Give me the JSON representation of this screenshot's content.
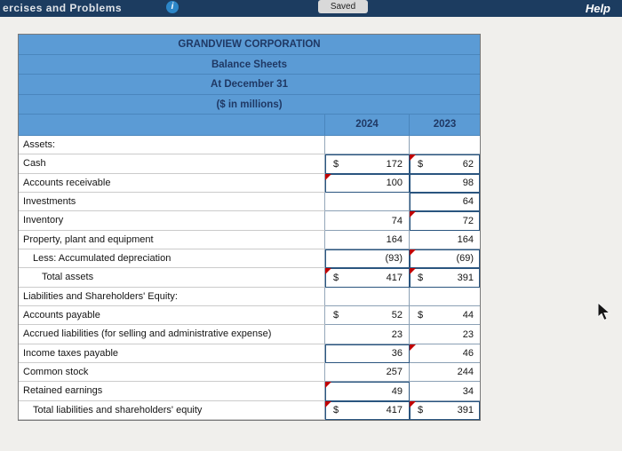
{
  "topbar": {
    "left_text": "ercises and Problems",
    "info_glyph": "i",
    "saved_label": "Saved",
    "help_label": "Help"
  },
  "colors": {
    "topbar_bg": "#1c3c60",
    "header_blue": "#5b9bd5",
    "header_text": "#1f3864",
    "input_box_border": "#2a557f",
    "flag_red": "#c00000"
  },
  "table": {
    "title_lines": [
      "GRANDVIEW CORPORATION",
      "Balance Sheets",
      "At December 31",
      "($ in millions)"
    ],
    "columns": [
      "2024",
      "2023"
    ],
    "rows": [
      {
        "label": "Assets:",
        "section": true
      },
      {
        "label": "Cash",
        "cells": [
          {
            "dollar": "$",
            "value": "172",
            "box": true
          },
          {
            "dollar": "$",
            "value": "62",
            "box": true,
            "marker": true
          }
        ]
      },
      {
        "label": "Accounts receivable",
        "cells": [
          {
            "value": "100",
            "box": true,
            "marker": true
          },
          {
            "value": "98",
            "box": true
          }
        ]
      },
      {
        "label": "Investments",
        "cells": [
          {},
          {
            "value": "64",
            "box": true
          }
        ]
      },
      {
        "label": "Inventory",
        "cells": [
          {
            "value": "74"
          },
          {
            "value": "72",
            "box": true,
            "marker": true
          }
        ]
      },
      {
        "label": "Property, plant and equipment",
        "cells": [
          {
            "value": "164"
          },
          {
            "value": "164"
          }
        ]
      },
      {
        "label": "Less: Accumulated depreciation",
        "indent": 1,
        "cells": [
          {
            "value": "(93)",
            "box": true
          },
          {
            "value": "(69)",
            "box": true,
            "marker": true
          }
        ]
      },
      {
        "label": "Total assets",
        "indent": 2,
        "cells": [
          {
            "dollar": "$",
            "value": "417",
            "box": true,
            "marker": true
          },
          {
            "dollar": "$",
            "value": "391",
            "box": true,
            "marker": true
          }
        ]
      },
      {
        "label": "Liabilities and Shareholders' Equity:",
        "section": true
      },
      {
        "label": "Accounts payable",
        "cells": [
          {
            "dollar": "$",
            "value": "52"
          },
          {
            "dollar": "$",
            "value": "44"
          }
        ]
      },
      {
        "label": "Accrued liabilities (for selling and administrative expense)",
        "cells": [
          {
            "value": "23"
          },
          {
            "value": "23"
          }
        ]
      },
      {
        "label": "Income taxes payable",
        "cells": [
          {
            "value": "36",
            "box": true
          },
          {
            "value": "46",
            "marker": true
          }
        ]
      },
      {
        "label": "Common stock",
        "cells": [
          {
            "value": "257"
          },
          {
            "value": "244"
          }
        ]
      },
      {
        "label": "Retained earnings",
        "cells": [
          {
            "value": "49",
            "box": true,
            "marker": true
          },
          {
            "value": "34"
          }
        ]
      },
      {
        "label": "Total liabilities and shareholders' equity",
        "indent": 1,
        "cells": [
          {
            "dollar": "$",
            "value": "417",
            "box": true,
            "marker": true
          },
          {
            "dollar": "$",
            "value": "391",
            "box": true,
            "marker": true
          }
        ]
      }
    ]
  }
}
